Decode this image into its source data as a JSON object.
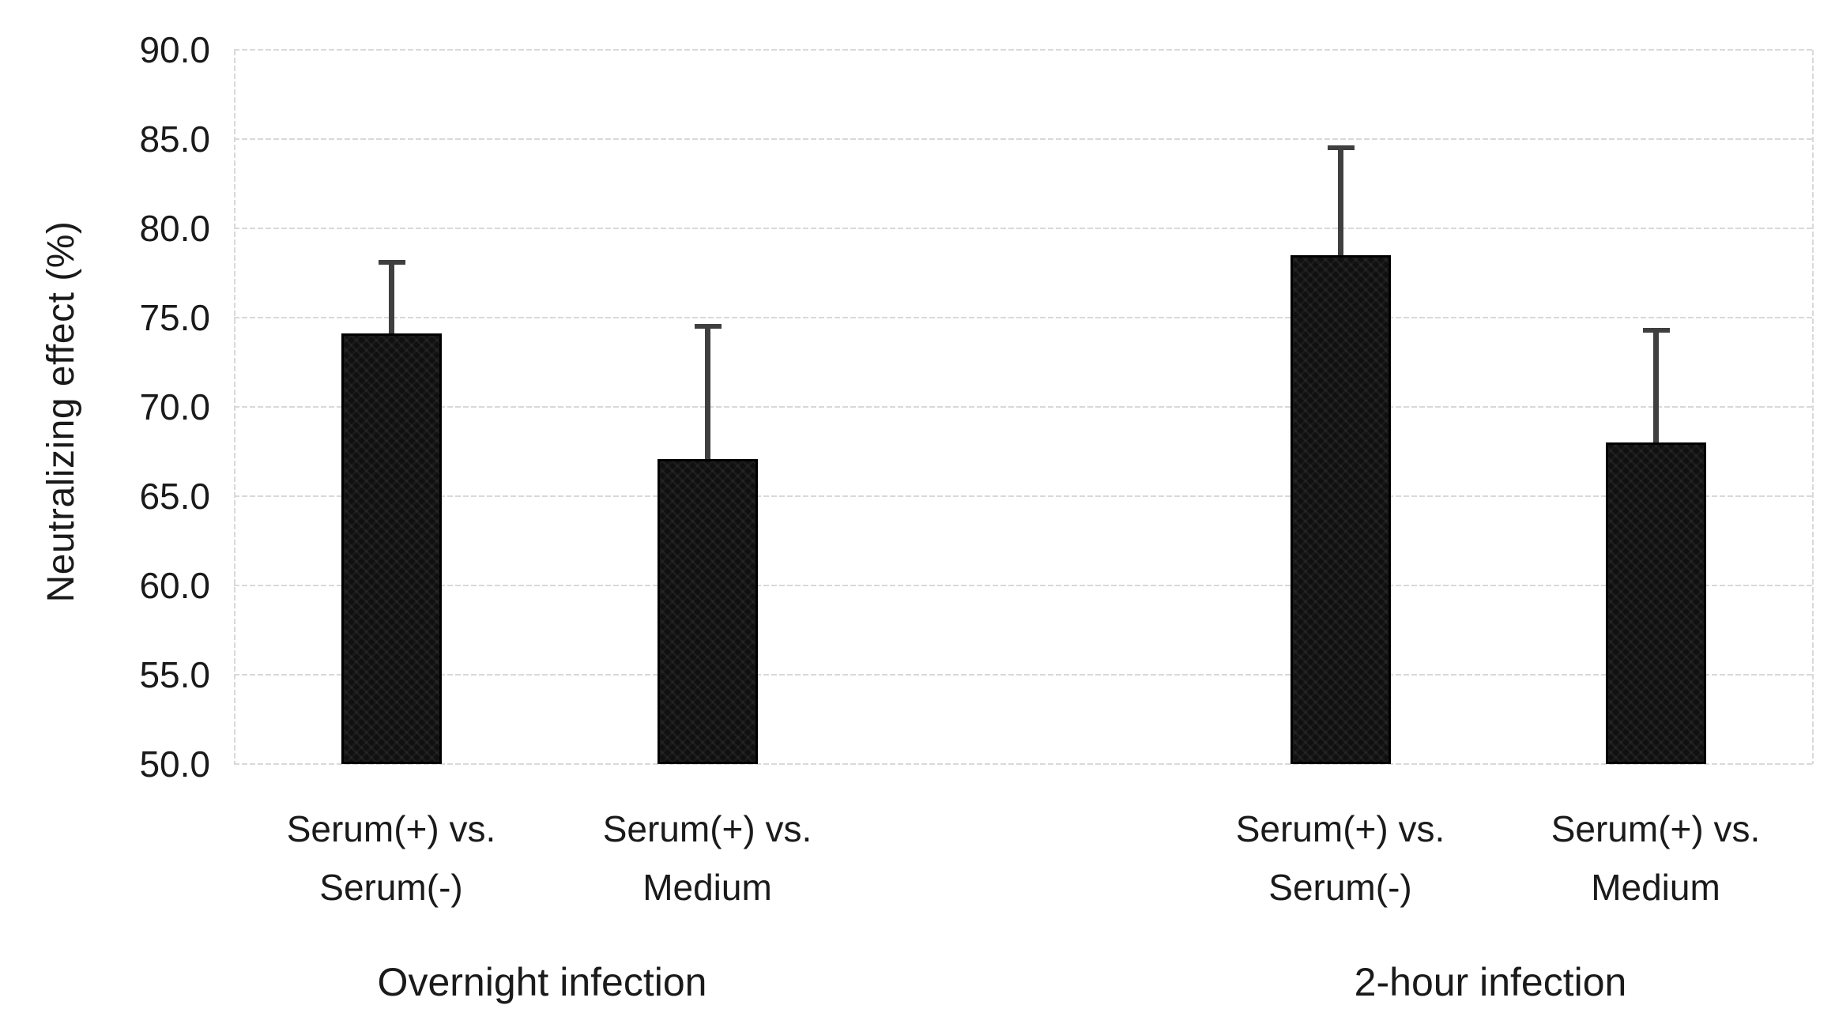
{
  "chart_data": {
    "type": "bar",
    "title": "",
    "xlabel": "",
    "ylabel": "Neutralizing effect (%)",
    "ylim": [
      50.0,
      90.0
    ],
    "ytick_step": 5.0,
    "ytick_labels": [
      "90.0",
      "85.0",
      "80.0",
      "75.0",
      "70.0",
      "65.0",
      "60.0",
      "55.0",
      "50.0"
    ],
    "grid": true,
    "legend": "none",
    "bar_color": "#101010",
    "error_bar_color": "#3f3f3f",
    "gridline_color": "#d9d9d9",
    "text_color": "#1a1a1a",
    "groups": [
      {
        "label": "Overnight infection",
        "bars": [
          {
            "label_line1": "Serum(+) vs.",
            "label_line2": "Serum(-)",
            "value": 74.1,
            "error_top": 78.1
          },
          {
            "label_line1": "Serum(+) vs.",
            "label_line2": "Medium",
            "value": 67.1,
            "error_top": 74.5
          }
        ]
      },
      {
        "label": "2-hour infection",
        "bars": [
          {
            "label_line1": "Serum(+) vs.",
            "label_line2": "Serum(-)",
            "value": 78.5,
            "error_top": 84.5
          },
          {
            "label_line1": "Serum(+) vs.",
            "label_line2": "Medium",
            "value": 68.0,
            "error_top": 74.3
          }
        ]
      }
    ]
  }
}
